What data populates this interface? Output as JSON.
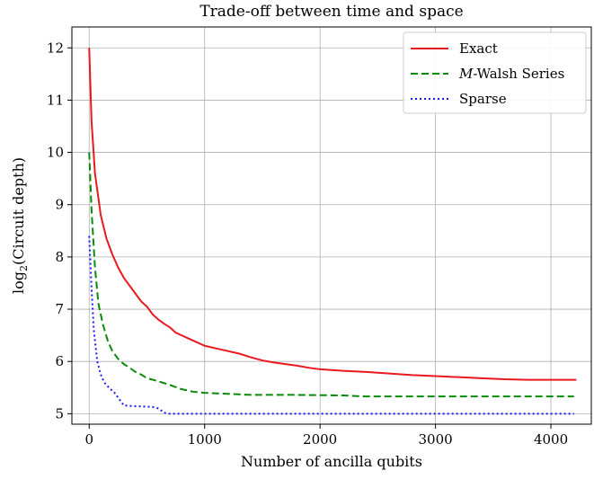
{
  "chart_data": {
    "type": "line",
    "title": "Trade-off between time and space",
    "xlabel": "Number of ancilla qubits",
    "ylabel": "log2(Circuit depth)",
    "ylabel_main": "log",
    "ylabel_sub": "2",
    "ylabel_rest": "(Circuit depth)",
    "xlim": [
      -150,
      4350
    ],
    "ylim": [
      4.8,
      12.4
    ],
    "xticks": [
      0,
      1000,
      2000,
      3000,
      4000
    ],
    "xtick_labels": [
      "0",
      "1000",
      "2000",
      "3000",
      "4000"
    ],
    "yticks": [
      5,
      6,
      7,
      8,
      9,
      10,
      11,
      12
    ],
    "ytick_labels": [
      "5",
      "6",
      "7",
      "8",
      "9",
      "10",
      "11",
      "12"
    ],
    "grid": true,
    "legend_position": "top-right",
    "series": [
      {
        "name": "Exact",
        "color": "#e8191f",
        "style": "solid",
        "points": [
          [
            0,
            12.0
          ],
          [
            20,
            10.6
          ],
          [
            50,
            9.6
          ],
          [
            100,
            8.8
          ],
          [
            150,
            8.35
          ],
          [
            200,
            8.05
          ],
          [
            250,
            7.8
          ],
          [
            300,
            7.6
          ],
          [
            350,
            7.45
          ],
          [
            400,
            7.3
          ],
          [
            450,
            7.15
          ],
          [
            500,
            7.05
          ],
          [
            550,
            6.9
          ],
          [
            600,
            6.8
          ],
          [
            650,
            6.72
          ],
          [
            700,
            6.65
          ],
          [
            750,
            6.55
          ],
          [
            800,
            6.5
          ],
          [
            850,
            6.45
          ],
          [
            900,
            6.4
          ],
          [
            950,
            6.35
          ],
          [
            1000,
            6.3
          ],
          [
            1100,
            6.25
          ],
          [
            1200,
            6.2
          ],
          [
            1300,
            6.15
          ],
          [
            1400,
            6.08
          ],
          [
            1500,
            6.02
          ],
          [
            1600,
            5.98
          ],
          [
            1700,
            5.95
          ],
          [
            1800,
            5.92
          ],
          [
            1900,
            5.88
          ],
          [
            2000,
            5.85
          ],
          [
            2200,
            5.82
          ],
          [
            2400,
            5.8
          ],
          [
            2600,
            5.77
          ],
          [
            2800,
            5.74
          ],
          [
            3000,
            5.72
          ],
          [
            3200,
            5.7
          ],
          [
            3400,
            5.68
          ],
          [
            3600,
            5.66
          ],
          [
            3800,
            5.65
          ],
          [
            4000,
            5.65
          ],
          [
            4220,
            5.65
          ]
        ]
      },
      {
        "name": "M-Walsh Series",
        "name_italic": "M",
        "name_rest": "-Walsh Series",
        "color": "#0a8a0a",
        "style": "dashed",
        "points": [
          [
            0,
            10.0
          ],
          [
            20,
            8.9
          ],
          [
            50,
            7.8
          ],
          [
            80,
            7.1
          ],
          [
            120,
            6.7
          ],
          [
            160,
            6.4
          ],
          [
            200,
            6.2
          ],
          [
            250,
            6.05
          ],
          [
            300,
            5.95
          ],
          [
            350,
            5.88
          ],
          [
            400,
            5.8
          ],
          [
            450,
            5.75
          ],
          [
            500,
            5.68
          ],
          [
            600,
            5.62
          ],
          [
            700,
            5.55
          ],
          [
            800,
            5.47
          ],
          [
            900,
            5.42
          ],
          [
            1000,
            5.4
          ],
          [
            1200,
            5.38
          ],
          [
            1400,
            5.36
          ],
          [
            1800,
            5.36
          ],
          [
            2200,
            5.35
          ],
          [
            2400,
            5.33
          ],
          [
            3000,
            5.33
          ],
          [
            3600,
            5.33
          ],
          [
            4200,
            5.33
          ]
        ]
      },
      {
        "name": "Sparse",
        "color": "#1a1aff",
        "style": "dotted",
        "points": [
          [
            0,
            8.4
          ],
          [
            20,
            7.4
          ],
          [
            40,
            6.6
          ],
          [
            70,
            6.0
          ],
          [
            100,
            5.75
          ],
          [
            130,
            5.6
          ],
          [
            170,
            5.5
          ],
          [
            220,
            5.4
          ],
          [
            260,
            5.28
          ],
          [
            300,
            5.16
          ],
          [
            350,
            5.15
          ],
          [
            450,
            5.14
          ],
          [
            550,
            5.13
          ],
          [
            600,
            5.1
          ],
          [
            650,
            5.02
          ],
          [
            700,
            5.0
          ],
          [
            1000,
            5.0
          ],
          [
            2000,
            5.0
          ],
          [
            3000,
            5.0
          ],
          [
            4200,
            5.0
          ]
        ]
      }
    ]
  }
}
